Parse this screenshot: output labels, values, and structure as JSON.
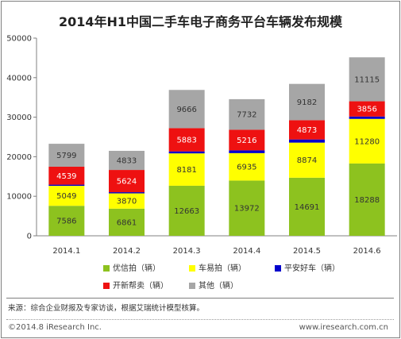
{
  "chart_data": {
    "type": "bar",
    "stacked": true,
    "title": "2014年H1中国二手车电子商务平台车辆发布规模",
    "categories": [
      "2014.1",
      "2014.2",
      "2014.3",
      "2014.4",
      "2014.5",
      "2014.6"
    ],
    "ylim": [
      0,
      50000
    ],
    "yticks": [
      "0",
      "10000",
      "20000",
      "30000",
      "40000",
      "50000"
    ],
    "grid": false,
    "series": [
      {
        "name": "优信拍（辆）",
        "color": "#8dc21f",
        "values": [
          7586,
          6861,
          12663,
          13972,
          14691,
          18288
        ]
      },
      {
        "name": "车易拍（辆）",
        "color": "#ffff00",
        "values": [
          5049,
          3870,
          8181,
          6935,
          8874,
          11280
        ]
      },
      {
        "name": "平安好车（辆）",
        "color": "#0000cc",
        "values": [
          300,
          300,
          500,
          700,
          800,
          600
        ]
      },
      {
        "name": "开新帮卖（辆）",
        "color": "#ee1111",
        "values": [
          4539,
          5624,
          5883,
          5216,
          4873,
          3856
        ]
      },
      {
        "name": "其他（辆）",
        "color": "#a6a6a6",
        "values": [
          5799,
          4833,
          9666,
          7732,
          9182,
          11115
        ]
      }
    ],
    "value_labels": [
      [
        "7586",
        "6861",
        "12663",
        "13972",
        "14691",
        "18288"
      ],
      [
        "5049",
        "3870",
        "8181",
        "6935",
        "8874",
        "11280"
      ],
      [
        "",
        "",
        "",
        "",
        "",
        ""
      ],
      [
        "4539",
        "5624",
        "5883",
        "5216",
        "4873",
        "3856"
      ],
      [
        "5799",
        "4833",
        "9666",
        "7732",
        "9182",
        "11115"
      ]
    ],
    "legend_position": "bottom"
  },
  "footer": {
    "source": "来源：综合企业财报及专家访谈，根据艾瑞统计模型核算。",
    "copyright": "©2014.8 iResearch Inc.",
    "website": "www.iresearch.com.cn"
  }
}
